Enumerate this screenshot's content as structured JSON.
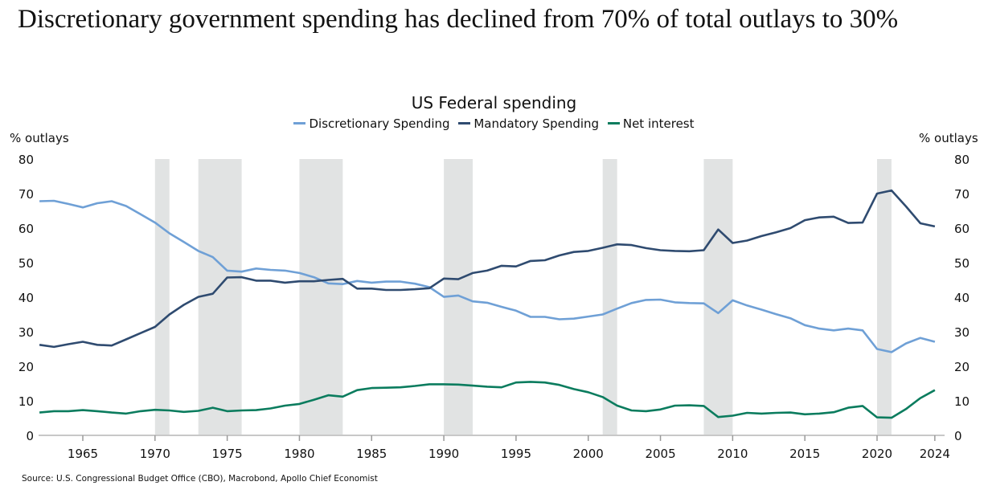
{
  "headline": "Discretionary government spending has declined from 70% of total outlays to 30%",
  "source": "Source: U.S. Congressional Budget Office (CBO), Macrobond, Apollo Chief Economist",
  "chart_data": {
    "type": "line",
    "title": "US Federal spending",
    "ylabel_left": "% outlays",
    "ylabel_right": "% outlays",
    "xlabel": "",
    "ylim": [
      0,
      80
    ],
    "yticks": [
      0,
      10,
      20,
      30,
      40,
      50,
      60,
      70,
      80
    ],
    "xlim": [
      1962,
      2024
    ],
    "xticks": [
      1965,
      1970,
      1975,
      1980,
      1985,
      1990,
      1995,
      2000,
      2005,
      2010,
      2015,
      2020,
      2024
    ],
    "grid": false,
    "legend_position": "top-center",
    "recessions": [
      [
        1970,
        1971
      ],
      [
        1973,
        1976
      ],
      [
        1980,
        1983
      ],
      [
        1990,
        1992
      ],
      [
        2001,
        2002
      ],
      [
        2008,
        2010
      ],
      [
        2020,
        2021
      ]
    ],
    "recession_color": "#e1e3e3",
    "x": [
      1962,
      1963,
      1964,
      1965,
      1966,
      1967,
      1968,
      1969,
      1970,
      1971,
      1972,
      1973,
      1974,
      1975,
      1976,
      1977,
      1978,
      1979,
      1980,
      1981,
      1982,
      1983,
      1984,
      1985,
      1986,
      1987,
      1988,
      1989,
      1990,
      1991,
      1992,
      1993,
      1994,
      1995,
      1996,
      1997,
      1998,
      1999,
      2000,
      2001,
      2002,
      2003,
      2004,
      2005,
      2006,
      2007,
      2008,
      2009,
      2010,
      2011,
      2012,
      2013,
      2014,
      2015,
      2016,
      2017,
      2018,
      2019,
      2020,
      2021,
      2022,
      2023,
      2024
    ],
    "series": [
      {
        "name": "Discretionary Spending",
        "color": "#6fa0d6",
        "values": [
          67.8,
          67.9,
          67.0,
          66.0,
          67.2,
          67.8,
          66.4,
          64.0,
          61.6,
          58.5,
          56.0,
          53.4,
          51.6,
          47.7,
          47.4,
          48.3,
          47.9,
          47.7,
          47.0,
          45.8,
          44.0,
          43.8,
          44.7,
          44.2,
          44.5,
          44.5,
          43.9,
          42.9,
          40.1,
          40.5,
          38.8,
          38.4,
          37.2,
          36.1,
          34.3,
          34.3,
          33.6,
          33.8,
          34.4,
          35.0,
          36.7,
          38.3,
          39.2,
          39.3,
          38.5,
          38.3,
          38.2,
          35.4,
          39.1,
          37.6,
          36.4,
          35.1,
          33.9,
          31.9,
          30.9,
          30.4,
          30.9,
          30.4,
          25.0,
          24.1,
          26.6,
          28.2,
          27.1
        ]
      },
      {
        "name": "Mandatory Spending",
        "color": "#2f4b70",
        "values": [
          26.2,
          25.6,
          26.4,
          27.1,
          26.2,
          26.0,
          27.8,
          29.6,
          31.4,
          35.0,
          37.8,
          40.1,
          41.0,
          45.7,
          45.8,
          44.8,
          44.8,
          44.2,
          44.6,
          44.6,
          45.0,
          45.3,
          42.5,
          42.5,
          42.1,
          42.1,
          42.3,
          42.6,
          45.4,
          45.2,
          47.0,
          47.7,
          49.1,
          48.9,
          50.5,
          50.7,
          52.1,
          53.1,
          53.4,
          54.3,
          55.3,
          55.1,
          54.2,
          53.6,
          53.4,
          53.3,
          53.6,
          59.6,
          55.7,
          56.4,
          57.7,
          58.8,
          60.0,
          62.3,
          63.1,
          63.3,
          61.5,
          61.6,
          70.0,
          70.9,
          66.3,
          61.4,
          60.5
        ]
      },
      {
        "name": "Net interest",
        "color": "#0b7c5e",
        "values": [
          6.6,
          7.0,
          7.0,
          7.3,
          7.0,
          6.6,
          6.3,
          7.0,
          7.4,
          7.2,
          6.8,
          7.1,
          8.0,
          7.0,
          7.2,
          7.3,
          7.8,
          8.6,
          9.1,
          10.3,
          11.6,
          11.2,
          13.1,
          13.7,
          13.8,
          13.9,
          14.3,
          14.8,
          14.8,
          14.7,
          14.4,
          14.1,
          13.9,
          15.3,
          15.5,
          15.3,
          14.6,
          13.4,
          12.5,
          11.1,
          8.6,
          7.2,
          7.0,
          7.5,
          8.6,
          8.7,
          8.5,
          5.3,
          5.7,
          6.5,
          6.3,
          6.5,
          6.6,
          6.1,
          6.3,
          6.7,
          8.0,
          8.5,
          5.2,
          5.1,
          7.6,
          10.8,
          13.1
        ]
      }
    ]
  }
}
